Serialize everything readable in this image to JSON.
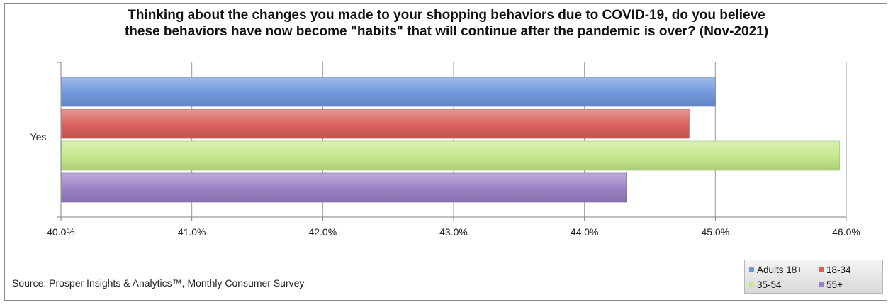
{
  "chart_data": {
    "type": "bar",
    "orientation": "horizontal",
    "title_lines": [
      "Thinking about the changes you made to your shopping behaviors due to COVID-19, do you believe",
      "these behaviors have now become \"habits\" that will continue after the pandemic is over? (Nov-2021)"
    ],
    "categories": [
      "Yes"
    ],
    "series": [
      {
        "name": "Adults 18+",
        "values": [
          45.0
        ],
        "color": "#6f98dc"
      },
      {
        "name": "18-34",
        "values": [
          44.8
        ],
        "color": "#d9605c"
      },
      {
        "name": "35-54",
        "values": [
          45.95
        ],
        "color": "#c5e88a"
      },
      {
        "name": "55+",
        "values": [
          44.32
        ],
        "color": "#9a80c4"
      }
    ],
    "xlim": [
      40,
      46
    ],
    "x_ticks": [
      "40.0%",
      "41.0%",
      "42.0%",
      "43.0%",
      "44.0%",
      "45.0%",
      "46.0%"
    ],
    "grid": true,
    "legend_position": "bottom-right"
  },
  "source": "Source: Prosper Insights & Analytics™, Monthly Consumer Survey"
}
